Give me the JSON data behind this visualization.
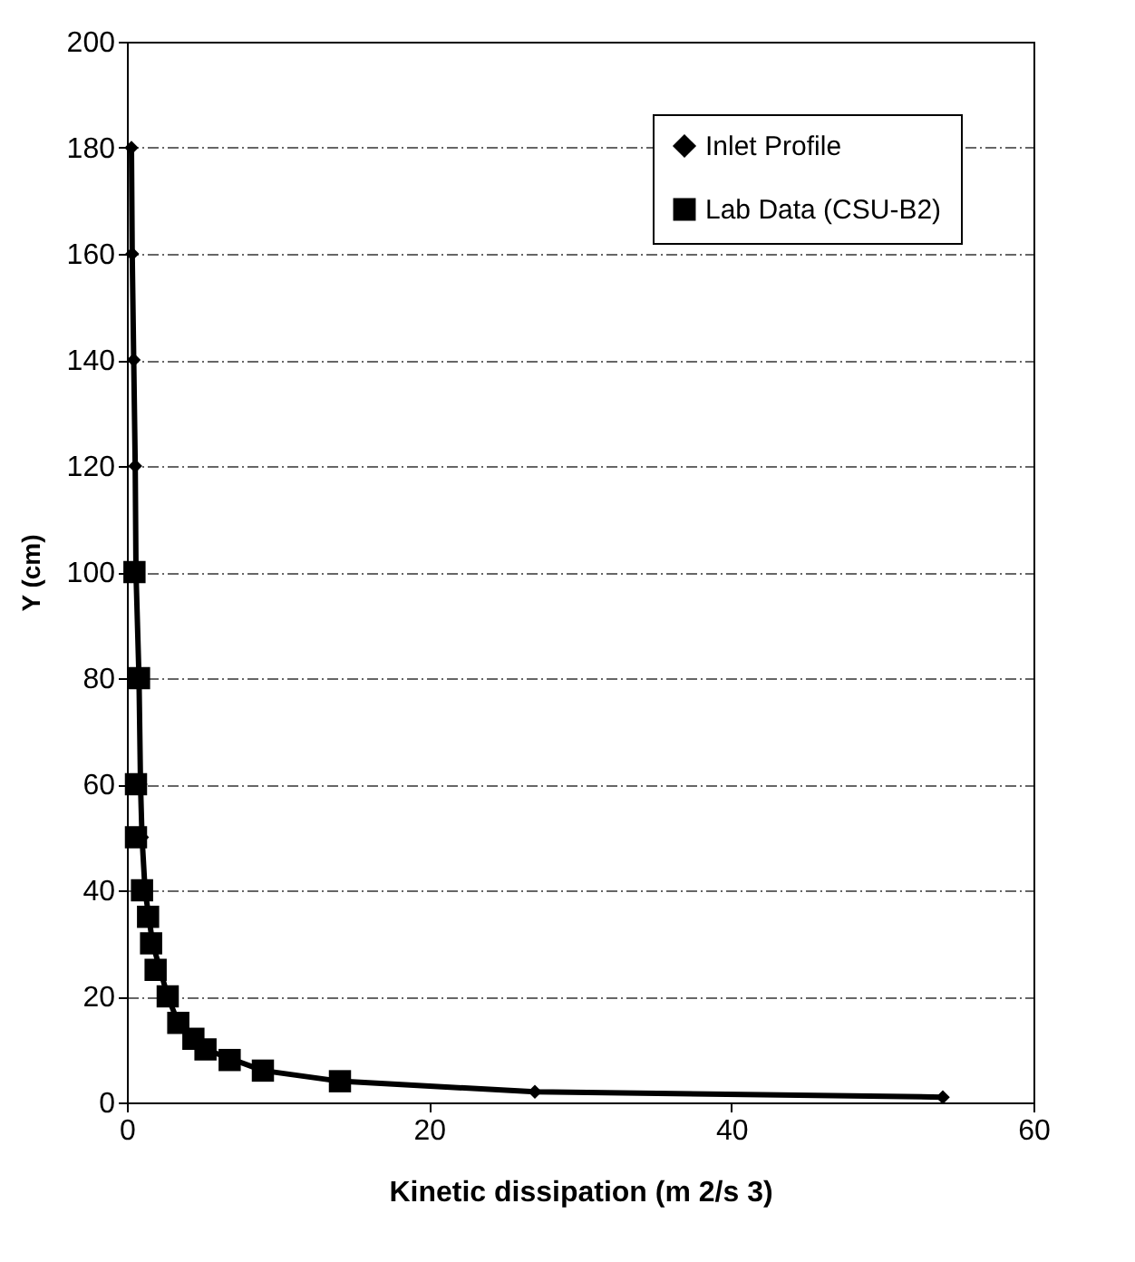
{
  "chart_data": {
    "type": "line",
    "xlabel": "Kinetic dissipation (m 2/s 3)",
    "ylabel": "Y (cm)",
    "xlim": [
      0,
      60
    ],
    "xticks": [
      0,
      20,
      40,
      60
    ],
    "ylim": [
      0,
      200
    ],
    "yticks": [
      0,
      20,
      40,
      60,
      80,
      100,
      120,
      140,
      160,
      180,
      200
    ],
    "grid": "y",
    "legend": "top right",
    "series": [
      {
        "name": "Inlet Profile",
        "type": "line",
        "marker": "diamond",
        "color": "#000000",
        "x": [
          0.3,
          0.35,
          0.45,
          0.55,
          0.6,
          0.8,
          0.9,
          1.0,
          1.2,
          1.7,
          2.7,
          3.4,
          5.2,
          9.0,
          14.1,
          27,
          54
        ],
        "values": [
          180,
          160,
          140,
          120,
          100,
          80,
          60,
          50,
          40,
          30,
          20,
          15,
          10,
          6,
          4,
          2,
          1
        ]
      },
      {
        "name": "Lab Data (CSU-B2)",
        "type": "scatter",
        "marker": "square",
        "color": "#000000",
        "x": [
          0.5,
          0.8,
          0.6,
          0.6,
          1.0,
          1.4,
          1.6,
          1.9,
          2.7,
          3.4,
          4.4,
          5.2,
          6.8,
          9.0,
          14.1
        ],
        "values": [
          100,
          80,
          60,
          50,
          40,
          35,
          30,
          25,
          20,
          15,
          12,
          10,
          8,
          6,
          4
        ]
      }
    ]
  }
}
